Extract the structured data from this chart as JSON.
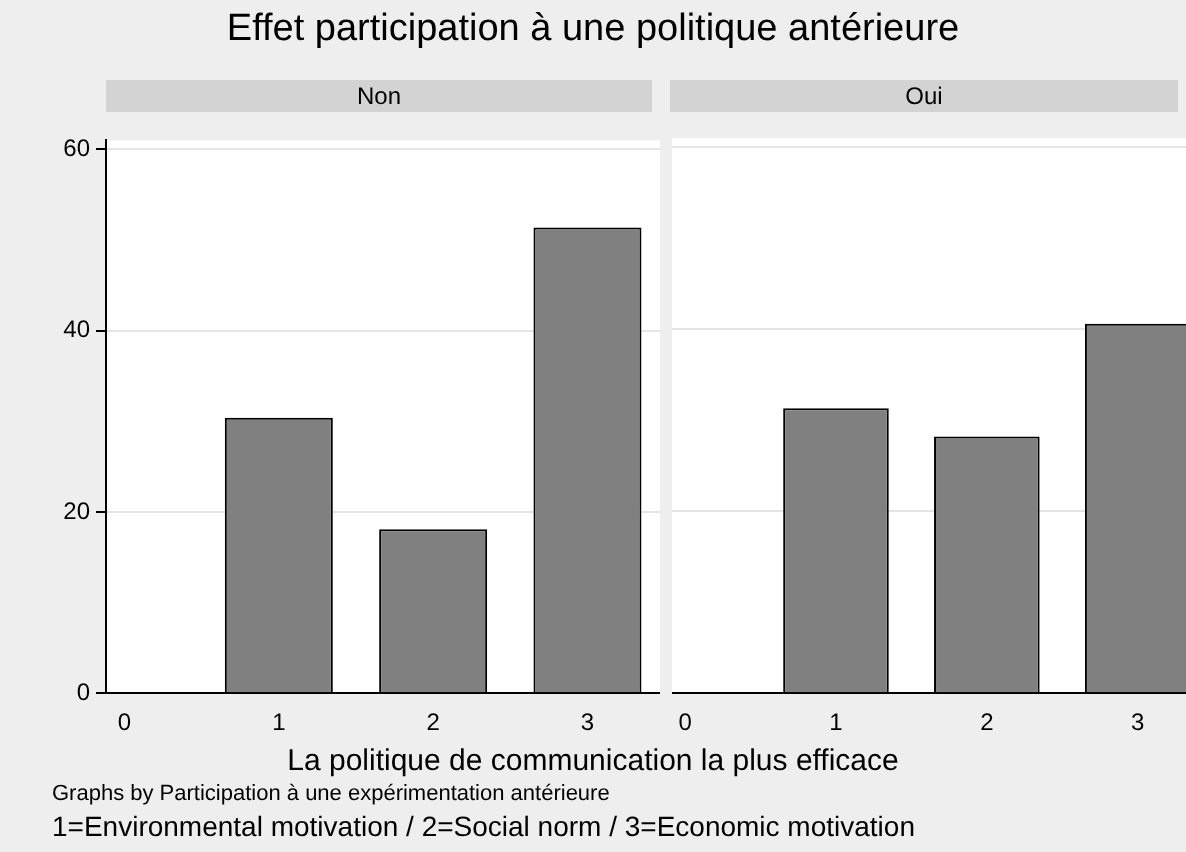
{
  "chart_data": [
    {
      "type": "bar",
      "title": "Effet participation à une politique antérieure",
      "subtitle": "Non",
      "xlabel": "La politique de communication la plus efficace",
      "annotations": [
        "Graphs by Participation à une expérimentation antérieure",
        "1=Environmental motivation / 2=Social norm / 3=Economic motivation"
      ],
      "x": [
        1,
        2,
        3
      ],
      "values": [
        30.4,
        18.1,
        51.4
      ],
      "color": "#808080",
      "xlim": [
        -0.12,
        3.47
      ],
      "xticks": [
        0,
        1,
        2,
        3
      ],
      "ylim": [
        0,
        61
      ],
      "yticks": [
        0,
        20,
        40,
        60
      ],
      "grid": "y",
      "legend": false
    },
    {
      "type": "bar",
      "subtitle": "Oui",
      "x": [
        1,
        2,
        3
      ],
      "values": [
        31.3,
        28.2,
        40.6
      ],
      "color": "#808080",
      "xlim": [
        -0.1,
        3.32
      ],
      "xticks": [
        0,
        1,
        2,
        3
      ],
      "ylim": [
        0,
        61
      ],
      "yticks": [
        0,
        20,
        40,
        60
      ],
      "grid": "y",
      "legend": false,
      "tick_labels": "x"
    }
  ]
}
